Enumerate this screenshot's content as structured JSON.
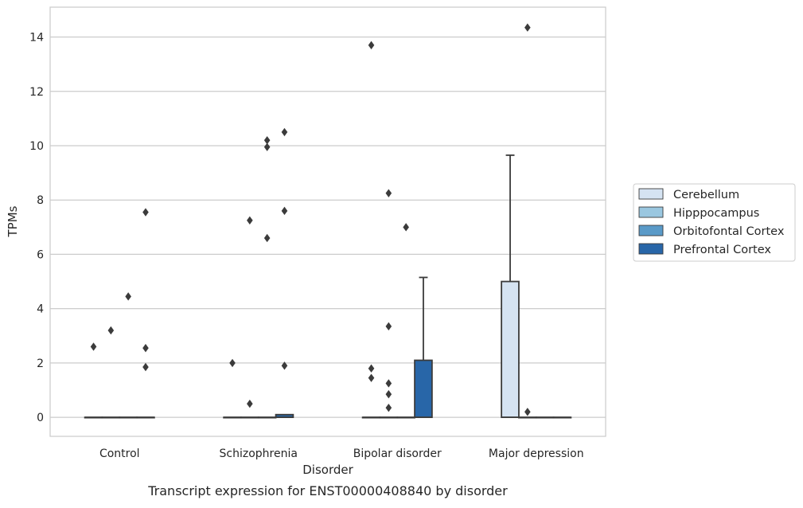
{
  "chart_data": {
    "type": "box",
    "title": "",
    "caption": "Transcript expression for ENST00000408840 by disorder",
    "xlabel": "Disorder",
    "ylabel": "TPMs",
    "ylim": [
      -0.7,
      15.1
    ],
    "yticks": [
      0,
      2,
      4,
      6,
      8,
      10,
      12,
      14
    ],
    "grid": "horizontal",
    "legend_position": "right",
    "categories": [
      "Control",
      "Schizophrenia",
      "Bipolar disorder",
      "Major depression"
    ],
    "series": [
      {
        "name": "Cerebellum",
        "color": "#d5e3f2"
      },
      {
        "name": "Hipppocampus",
        "color": "#9ac7e0"
      },
      {
        "name": "Orbitofontal Cortex",
        "color": "#5a9ac8"
      },
      {
        "name": "Prefrontal Cortex",
        "color": "#2866a8"
      }
    ],
    "boxes": [
      {
        "category": 0,
        "series": 0,
        "q1": 0,
        "median": 0,
        "q3": 0,
        "whislo": 0,
        "whishi": 0,
        "fliers": [
          2.6
        ]
      },
      {
        "category": 0,
        "series": 1,
        "q1": 0,
        "median": 0,
        "q3": 0,
        "whislo": 0,
        "whishi": 0,
        "fliers": [
          3.2
        ]
      },
      {
        "category": 0,
        "series": 2,
        "q1": 0,
        "median": 0,
        "q3": 0,
        "whislo": 0,
        "whishi": 0,
        "fliers": [
          4.45
        ]
      },
      {
        "category": 0,
        "series": 3,
        "q1": 0,
        "median": 0,
        "q3": 0,
        "whislo": 0,
        "whishi": 0,
        "fliers": [
          7.55,
          2.55,
          1.85
        ]
      },
      {
        "category": 1,
        "series": 0,
        "q1": 0,
        "median": 0,
        "q3": 0,
        "whislo": 0,
        "whishi": 0,
        "fliers": [
          2.0
        ]
      },
      {
        "category": 1,
        "series": 1,
        "q1": 0,
        "median": 0,
        "q3": 0,
        "whislo": 0,
        "whishi": 0,
        "fliers": [
          7.25,
          0.5
        ]
      },
      {
        "category": 1,
        "series": 2,
        "q1": 0,
        "median": 0,
        "q3": 0,
        "whislo": 0,
        "whishi": 0,
        "fliers": [
          10.2,
          9.95,
          6.6
        ]
      },
      {
        "category": 1,
        "series": 3,
        "q1": 0,
        "median": 0,
        "q3": 0.1,
        "whislo": 0,
        "whishi": 0.1,
        "fliers": [
          10.5,
          7.6,
          1.9
        ]
      },
      {
        "category": 2,
        "series": 0,
        "q1": 0,
        "median": 0,
        "q3": 0,
        "whislo": 0,
        "whishi": 0,
        "fliers": [
          13.7,
          1.8,
          1.45
        ]
      },
      {
        "category": 2,
        "series": 1,
        "q1": 0,
        "median": 0,
        "q3": 0,
        "whislo": 0,
        "whishi": 0,
        "fliers": [
          8.25,
          3.35,
          1.25,
          0.85,
          0.35
        ]
      },
      {
        "category": 2,
        "series": 2,
        "q1": 0,
        "median": 0,
        "q3": 0,
        "whislo": 0,
        "whishi": 0,
        "fliers": [
          7.0
        ]
      },
      {
        "category": 2,
        "series": 3,
        "q1": 0,
        "median": 0,
        "q3": 2.1,
        "whislo": 0,
        "whishi": 5.15,
        "fliers": []
      },
      {
        "category": 3,
        "series": 0,
        "q1": 0,
        "median": 0,
        "q3": 5.0,
        "whislo": 0,
        "whishi": 9.65,
        "fliers": []
      },
      {
        "category": 3,
        "series": 1,
        "q1": 0,
        "median": 0,
        "q3": 0,
        "whislo": 0,
        "whishi": 0,
        "fliers": [
          14.35,
          0.2
        ]
      },
      {
        "category": 3,
        "series": 2,
        "q1": 0,
        "median": 0,
        "q3": 0,
        "whislo": 0,
        "whishi": 0,
        "fliers": []
      },
      {
        "category": 3,
        "series": 3,
        "q1": 0,
        "median": 0,
        "q3": 0,
        "whislo": 0,
        "whishi": 0,
        "fliers": []
      }
    ]
  },
  "colors": {
    "grid": "#cccccc",
    "box_edge": "#3b3b3b",
    "flier": "#3b3b3b"
  }
}
